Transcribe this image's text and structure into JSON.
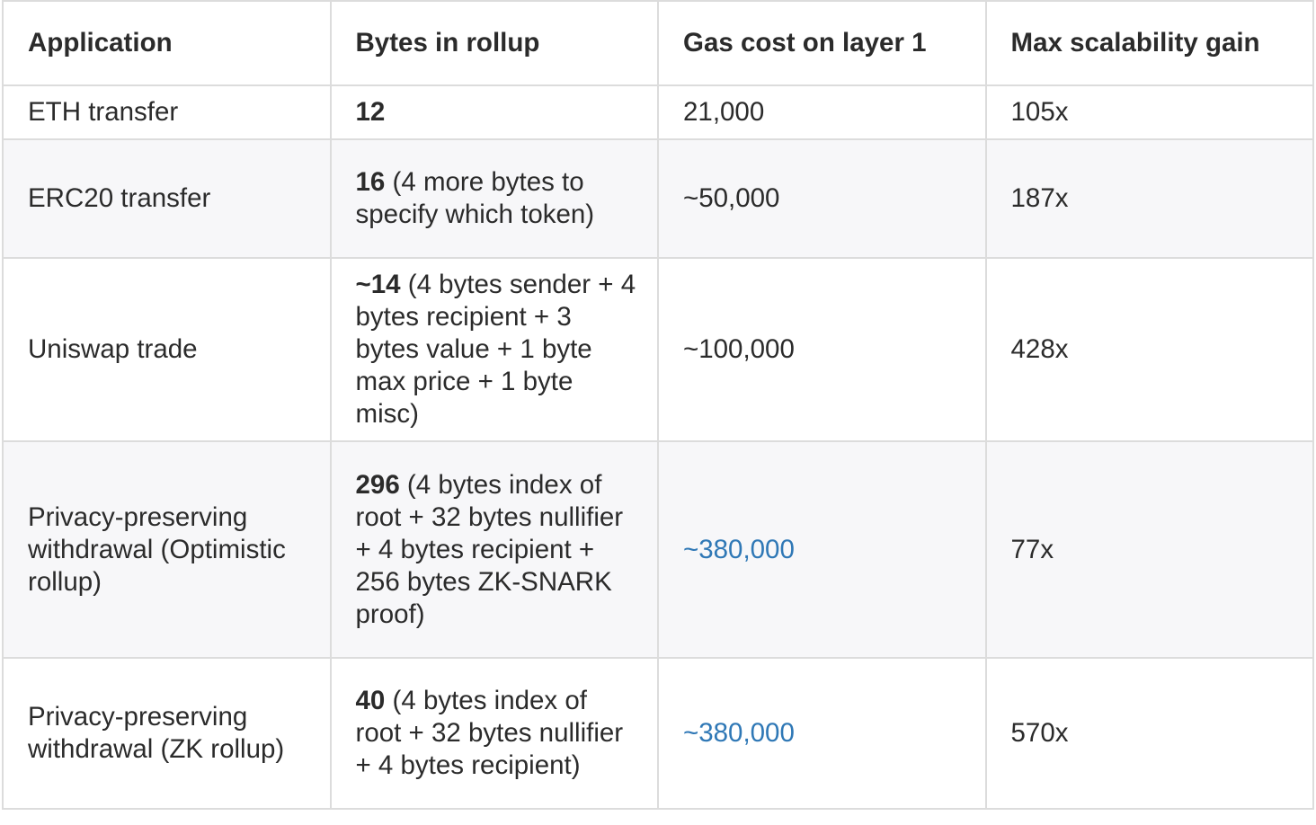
{
  "headers": [
    "Application",
    "Bytes in rollup",
    "Gas cost on layer 1",
    "Max scalability gain"
  ],
  "rows": [
    {
      "application": "ETH transfer",
      "bytes_bold": "12",
      "bytes_detail": "",
      "gas": "21,000",
      "gas_link": false,
      "gain": "105x"
    },
    {
      "application": "ERC20 transfer",
      "bytes_bold": "16",
      "bytes_detail": " (4 more bytes to specify which token)",
      "gas": "~50,000",
      "gas_link": false,
      "gain": "187x"
    },
    {
      "application": "Uniswap trade",
      "bytes_bold": "~14",
      "bytes_detail": " (4 bytes sender + 4 bytes recipient + 3 bytes value + 1 byte max price + 1 byte misc)",
      "gas": "~100,000",
      "gas_link": false,
      "gain": "428x"
    },
    {
      "application": "Privacy-preserving withdrawal (Optimistic rollup)",
      "bytes_bold": "296",
      "bytes_detail": " (4 bytes index of root + 32 bytes nullifier + 4 bytes recipient + 256 bytes ZK-SNARK proof)",
      "gas": "~380,000",
      "gas_link": true,
      "gain": "77x"
    },
    {
      "application": "Privacy-preserving withdrawal (ZK rollup)",
      "bytes_bold": "40",
      "bytes_detail": " (4 bytes index of root + 32 bytes nullifier + 4 bytes recipient)",
      "gas": "~380,000",
      "gas_link": true,
      "gain": "570x"
    }
  ],
  "colors": {
    "link": "#2f78b6",
    "border": "#dcdcdc",
    "alt_row": "#f7f7f9"
  }
}
